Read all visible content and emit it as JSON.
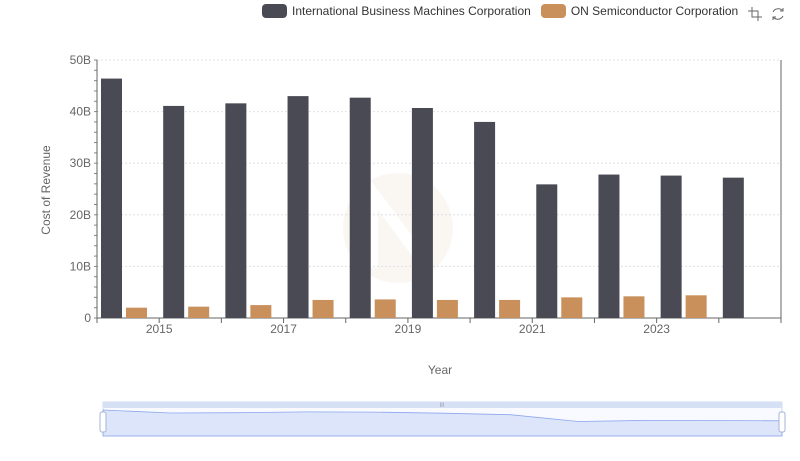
{
  "chart_data": {
    "type": "bar",
    "xlabel": "Year",
    "ylabel": "Cost of Revenue",
    "ylim": [
      0,
      50000000000
    ],
    "yticks": [
      "0",
      "10B",
      "20B",
      "30B",
      "40B",
      "50B"
    ],
    "categories": [
      "2014",
      "2015",
      "2016",
      "2017",
      "2018",
      "2019",
      "2020",
      "2021",
      "2022",
      "2023",
      "2024"
    ],
    "xtick_labels": [
      "2015",
      "2017",
      "2019",
      "2021",
      "2023"
    ],
    "legend_position": "top-right",
    "grid": true,
    "series": [
      {
        "name": "International Business Machines Corporation",
        "color": "#4a4a54",
        "values": [
          46400000000,
          41100000000,
          41600000000,
          43000000000,
          42700000000,
          40700000000,
          38000000000,
          25900000000,
          27800000000,
          27600000000,
          27200000000
        ]
      },
      {
        "name": "ON Semiconductor Corporation",
        "color": "#c9905c",
        "values": [
          2000000000,
          2200000000,
          2500000000,
          3500000000,
          3600000000,
          3500000000,
          3500000000,
          4000000000,
          4200000000,
          4400000000,
          null
        ]
      }
    ]
  },
  "toolbox": {
    "zoom_icon": "zoom-icon",
    "restore_icon": "restore-icon"
  }
}
